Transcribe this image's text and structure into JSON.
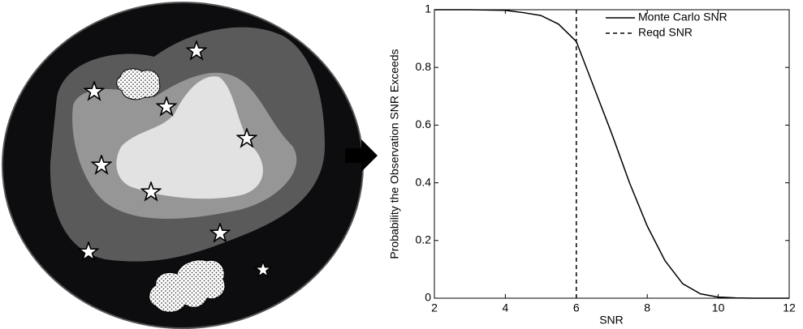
{
  "chart_data": {
    "type": "line",
    "xlabel": "SNR",
    "ylabel": "Probability the Observation SNR Exceeds",
    "xlim": [
      2,
      12
    ],
    "xticks": [
      2,
      4,
      6,
      8,
      10,
      12
    ],
    "ylim": [
      0,
      1
    ],
    "yticks": [
      0,
      0.2,
      0.4,
      0.6,
      0.8,
      1
    ],
    "legend": "upper right",
    "series": [
      {
        "name": "Monte Carlo SNR",
        "color": "#000000",
        "dash": "solid",
        "x": [
          2,
          3,
          4,
          4.5,
          5,
          5.5,
          6,
          6.5,
          7,
          7.5,
          8,
          8.5,
          9,
          9.5,
          10,
          10.5,
          11,
          12
        ],
        "values": [
          1,
          1,
          0.998,
          0.99,
          0.98,
          0.95,
          0.89,
          0.73,
          0.57,
          0.4,
          0.25,
          0.13,
          0.05,
          0.015,
          0.004,
          0.001,
          0,
          0
        ]
      },
      {
        "name": "Reqd SNR",
        "color": "#000000",
        "dash": "dashed",
        "x": [
          6,
          6
        ],
        "values": [
          0,
          1
        ]
      }
    ]
  }
}
